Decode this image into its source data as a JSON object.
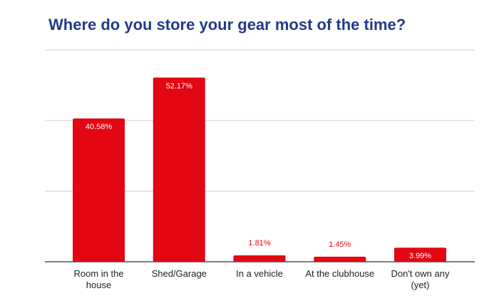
{
  "chart_data": {
    "type": "bar",
    "title": "Where do you store your gear most of the time?",
    "categories": [
      [
        "Room in the",
        "house"
      ],
      [
        "Shed/Garage"
      ],
      [
        "In a vehicle"
      ],
      [
        "At the clubhouse"
      ],
      [
        "Don't own any",
        "(yet)"
      ]
    ],
    "values": [
      40.58,
      52.17,
      1.81,
      1.45,
      3.99
    ],
    "data_labels": [
      "40.58%",
      "52.17%",
      "1.81%",
      "1.45%",
      "3.99%"
    ],
    "ylim": [
      0,
      60
    ],
    "gridlines": [
      0,
      20,
      40,
      60
    ],
    "grid": true,
    "y_tick_labels_shown": false,
    "legend": "none",
    "colors": {
      "bar": "#e30613",
      "title": "#233a8a",
      "grid": "#cccccc",
      "axis": "#333333"
    }
  }
}
